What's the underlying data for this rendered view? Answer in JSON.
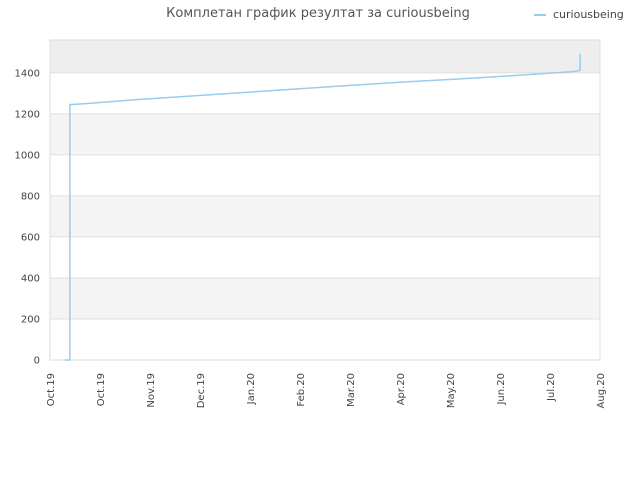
{
  "chart_data": {
    "type": "line",
    "title": "Комплетан график резултат за curiousbeing",
    "x_tick_labels": [
      "Oct.19",
      "Oct.19",
      "Nov.19",
      "Dec.19",
      "Jan.20",
      "Feb.20",
      "Mar.20",
      "Apr.20",
      "May.20",
      "Jun.20",
      "Jul.20",
      "Aug.20"
    ],
    "y_ticks": [
      0,
      200,
      400,
      600,
      800,
      1000,
      1200,
      1400
    ],
    "ylim": [
      0,
      1560
    ],
    "grid": true,
    "legend_position": "top-right",
    "series": [
      {
        "name": "curiousbeing",
        "color": "#99ccee",
        "points": [
          {
            "x": "2019-10-08",
            "y": 0
          },
          {
            "x": "2019-10-11",
            "y": 0
          },
          {
            "x": "2019-10-11",
            "y": 1245
          },
          {
            "x": "2019-10-20",
            "y": 1250
          },
          {
            "x": "2019-11-15",
            "y": 1268
          },
          {
            "x": "2019-12-15",
            "y": 1286
          },
          {
            "x": "2020-01-15",
            "y": 1304
          },
          {
            "x": "2020-02-15",
            "y": 1322
          },
          {
            "x": "2020-03-15",
            "y": 1339
          },
          {
            "x": "2020-04-15",
            "y": 1356
          },
          {
            "x": "2020-05-15",
            "y": 1371
          },
          {
            "x": "2020-06-15",
            "y": 1388
          },
          {
            "x": "2020-07-15",
            "y": 1406
          },
          {
            "x": "2020-07-19",
            "y": 1412
          },
          {
            "x": "2020-07-19",
            "y": 1492
          }
        ]
      }
    ]
  }
}
